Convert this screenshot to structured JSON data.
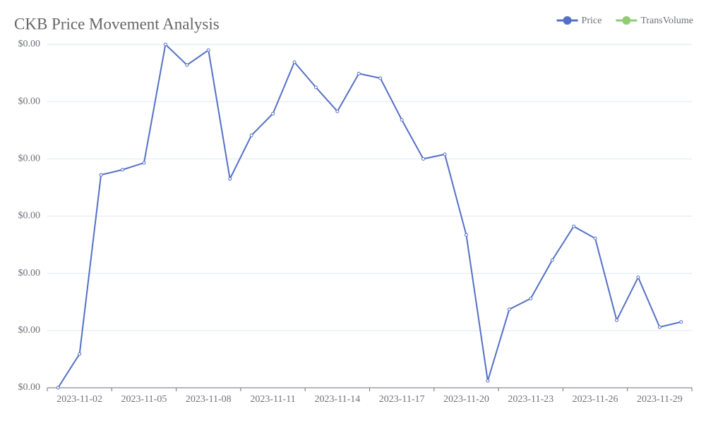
{
  "chart_data": {
    "type": "line",
    "title": "CKB Price Movement Analysis",
    "categories": [
      null,
      "2023-11-02",
      null,
      null,
      "2023-11-05",
      null,
      null,
      "2023-11-08",
      null,
      null,
      "2023-11-11",
      null,
      null,
      "2023-11-14",
      null,
      null,
      "2023-11-17",
      null,
      null,
      "2023-11-20",
      null,
      null,
      "2023-11-23",
      null,
      null,
      "2023-11-26",
      null,
      null,
      "2023-11-29",
      null
    ],
    "series": [
      {
        "name": "Price",
        "color": "#5470c6",
        "values": [
          0,
          0.00059,
          0.00372,
          0.00381,
          0.00393,
          0.006,
          0.00564,
          0.0059,
          0.00365,
          0.00441,
          0.00479,
          0.00569,
          0.00525,
          0.00483,
          0.00549,
          0.00541,
          0.00468,
          0.004,
          0.00408,
          0.00267,
          0.00012,
          0.00137,
          0.00156,
          0.00223,
          0.00282,
          0.00261,
          0.00118,
          0.00193,
          0.00106,
          0.00115
        ]
      },
      {
        "name": "TransVolume",
        "color": "#91cc75"
      }
    ],
    "ylim": [
      0,
      0.006
    ],
    "yticks": [
      {
        "value": 0,
        "label": "$0.00"
      },
      {
        "value": 0.001,
        "label": "$0.00"
      },
      {
        "value": 0.002,
        "label": "$0.00"
      },
      {
        "value": 0.003,
        "label": "$0.00"
      },
      {
        "value": 0.004,
        "label": "$0.00"
      },
      {
        "value": 0.005,
        "label": "$0.00"
      },
      {
        "value": 0.006,
        "label": "$0.00"
      }
    ],
    "grid": true,
    "legend": "top-right"
  }
}
